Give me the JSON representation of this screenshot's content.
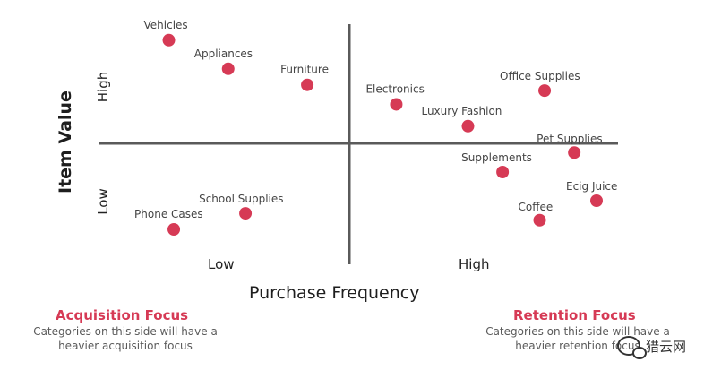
{
  "chart_data": {
    "type": "scatter",
    "title": "",
    "xlabel": "Purchase Frequency",
    "ylabel": "Item Value",
    "x_ticks": [
      "Low",
      "High"
    ],
    "y_ticks": [
      "Low",
      "High"
    ],
    "xlim": [
      -1,
      1
    ],
    "ylim": [
      -1,
      1
    ],
    "grid": false,
    "points": [
      {
        "label": "Vehicles",
        "x": -0.73,
        "y": 0.9
      },
      {
        "label": "Appliances",
        "x": -0.49,
        "y": 0.65
      },
      {
        "label": "Furniture",
        "x": -0.17,
        "y": 0.51
      },
      {
        "label": "Electronics",
        "x": 0.19,
        "y": 0.34
      },
      {
        "label": "Luxury Fashion",
        "x": 0.48,
        "y": 0.15
      },
      {
        "label": "Office Supplies",
        "x": 0.79,
        "y": 0.46
      },
      {
        "label": "Pet Supplies",
        "x": 0.91,
        "y": -0.08
      },
      {
        "label": "Supplements",
        "x": 0.62,
        "y": -0.25
      },
      {
        "label": "Ecig Juice",
        "x": 1.0,
        "y": -0.5
      },
      {
        "label": "Coffee",
        "x": 0.77,
        "y": -0.67
      },
      {
        "label": "School Supplies",
        "x": -0.42,
        "y": -0.61
      },
      {
        "label": "Phone Cases",
        "x": -0.71,
        "y": -0.75
      }
    ]
  },
  "annotations": {
    "acquisition_title": "Acquisition Focus",
    "acquisition_line1": "Categories on this side will have a",
    "acquisition_line2": "heavier acquisition focus",
    "retention_title": "Retention Focus",
    "retention_line1": "Categories on this side will have a",
    "retention_line2": "heavier retention focus"
  },
  "watermark": {
    "text": "猎云网",
    "icon": "wechat-icon"
  },
  "colors": {
    "point": "#d63a55",
    "axis": "#5a5a5a",
    "accent": "#d63a55"
  }
}
